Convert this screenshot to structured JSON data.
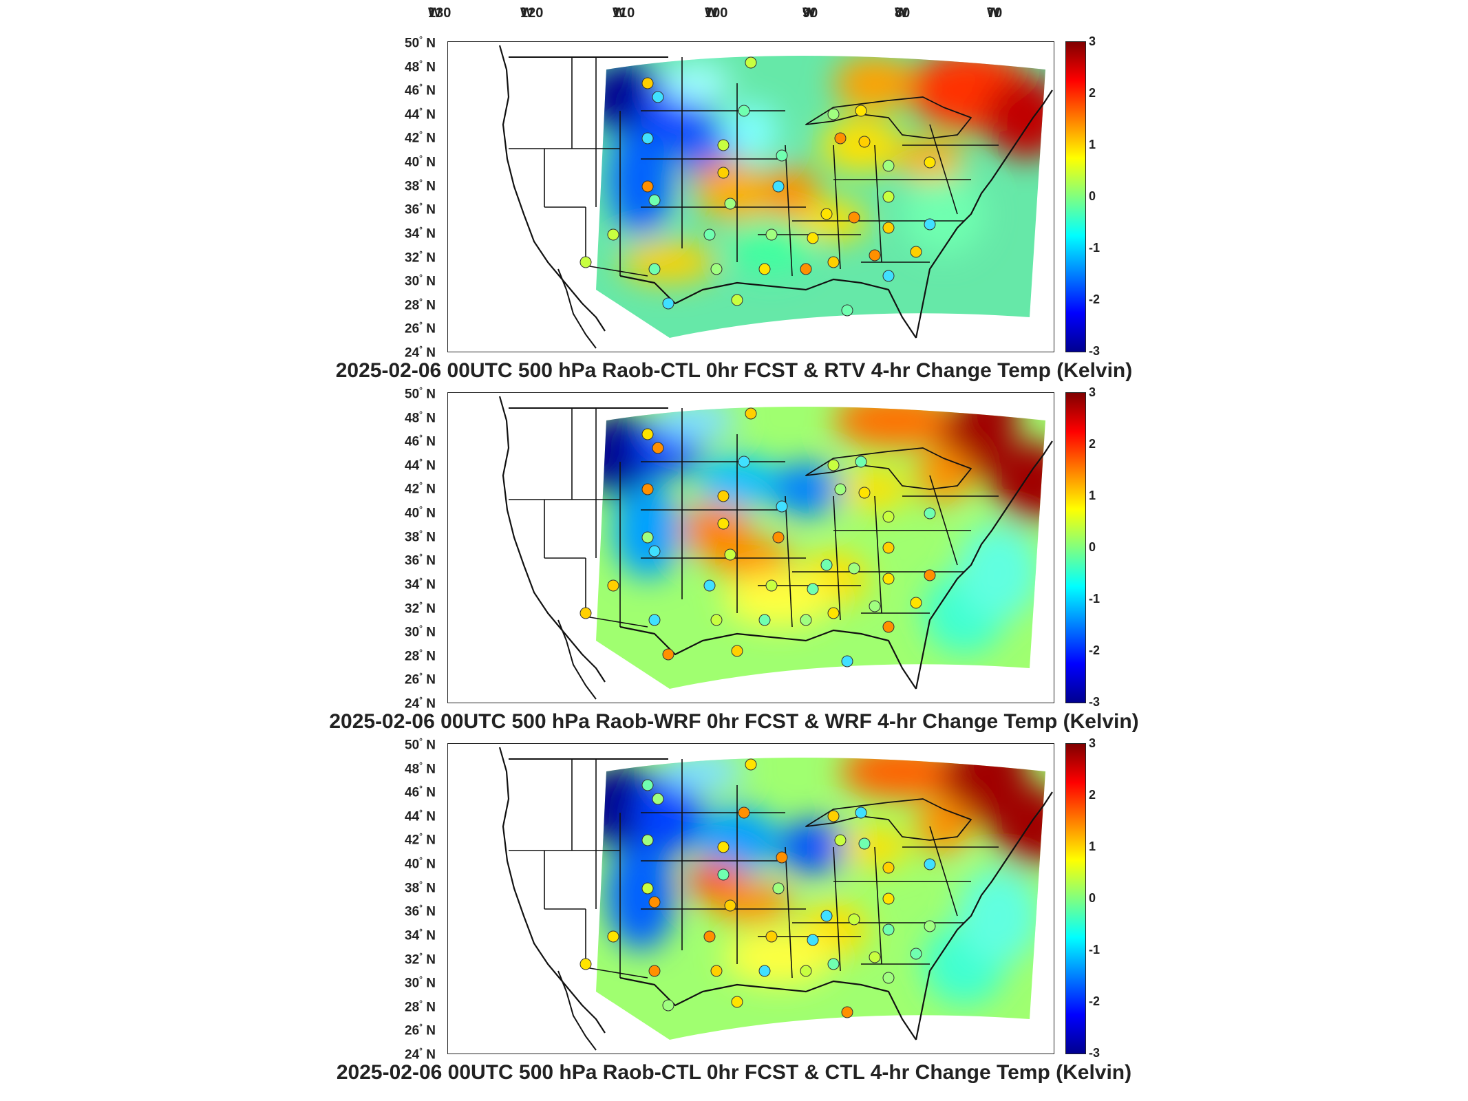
{
  "longitude_labels": [
    "130",
    "120",
    "110",
    "100",
    "90",
    "80",
    "70"
  ],
  "longitude_suffix": "W",
  "latitude_labels": [
    "50",
    "48",
    "46",
    "44",
    "42",
    "40",
    "38",
    "36",
    "34",
    "32",
    "30",
    "28",
    "26",
    "24"
  ],
  "latitude_suffix": "N",
  "degree_symbol": "°",
  "colorbar": {
    "ticks": [
      "3",
      "2",
      "1",
      "0",
      "-1",
      "-2",
      "-3"
    ],
    "range": [
      -3,
      3
    ],
    "colormap": "jet",
    "colors": [
      "#00008f",
      "#0000ff",
      "#0080ff",
      "#00ffff",
      "#80ff80",
      "#ffff00",
      "#ff8000",
      "#ff0000",
      "#800000"
    ]
  },
  "panels": [
    {
      "title": "2025-02-06 00UTC 500 hPa Raob-CTL 0hr FCST & RTV 4-hr Change Temp (Kelvin)"
    },
    {
      "title": "2025-02-06 00UTC 500 hPa Raob-WRF 0hr FCST & WRF 4-hr Change Temp (Kelvin)"
    },
    {
      "title": "2025-02-06 00UTC 500 hPa Raob-CTL 0hr FCST & CTL 4-hr Change Temp (Kelvin)"
    }
  ]
}
